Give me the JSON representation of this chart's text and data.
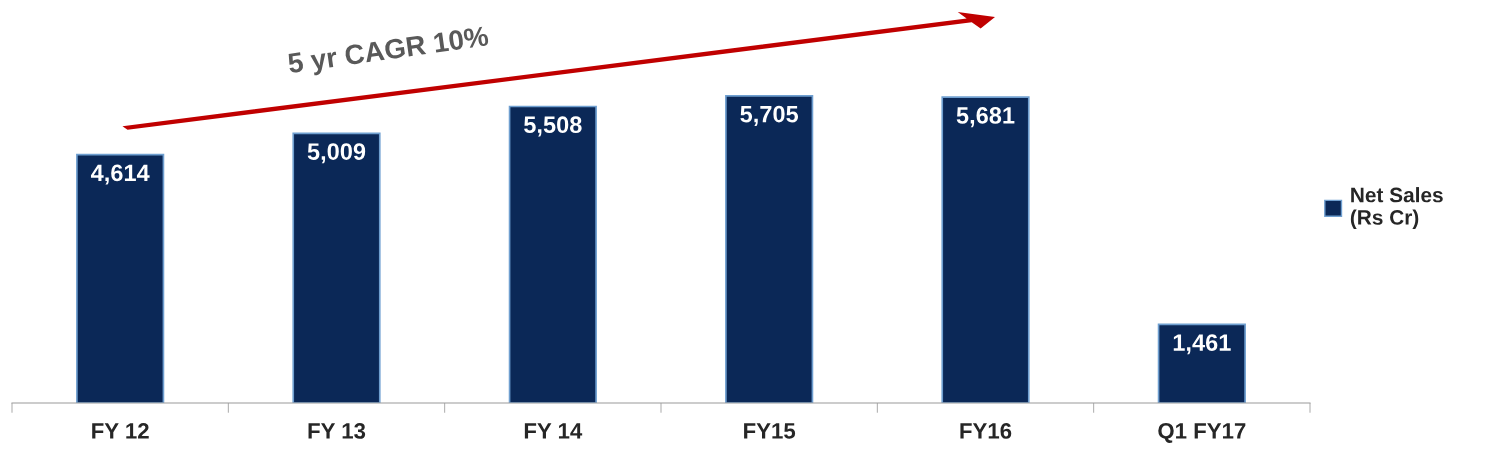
{
  "chart_data": {
    "type": "bar",
    "categories": [
      "FY 12",
      "FY 13",
      "FY 14",
      "FY15",
      "FY16",
      "Q1 FY17"
    ],
    "series": [
      {
        "name": "Net Sales\n(Rs Cr)",
        "color": "#0b2857",
        "values": [
          4614,
          5009,
          5508,
          5705,
          5681,
          1461
        ],
        "value_labels": [
          "4,614",
          "5,009",
          "5,508",
          "5,705",
          "5,681",
          "1,461"
        ]
      }
    ],
    "annotations": [
      "5 yr CAGR 10%"
    ],
    "legend": "right",
    "grid": false
  }
}
